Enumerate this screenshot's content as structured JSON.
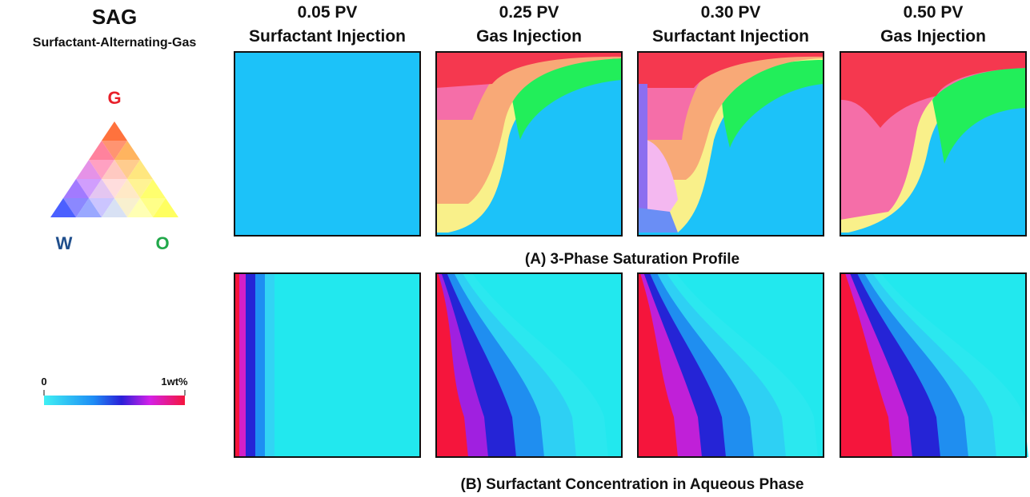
{
  "header": {
    "title": "SAG",
    "subtitle": "Surfactant-Alternating-Gas"
  },
  "ternary": {
    "top": "G",
    "left": "W",
    "right": "O"
  },
  "colorbar": {
    "min_label": "0",
    "max_label": "1wt%"
  },
  "columns": [
    {
      "pv": "0.05 PV",
      "stage": "Surfactant Injection"
    },
    {
      "pv": "0.25 PV",
      "stage": "Gas Injection"
    },
    {
      "pv": "0.30 PV",
      "stage": "Surfactant Injection"
    },
    {
      "pv": "0.50 PV",
      "stage": "Gas Injection"
    }
  ],
  "rows": {
    "a": "(A) 3-Phase Saturation Profile",
    "b": "(B) Surfactant Concentration in Aqueous Phase"
  }
}
